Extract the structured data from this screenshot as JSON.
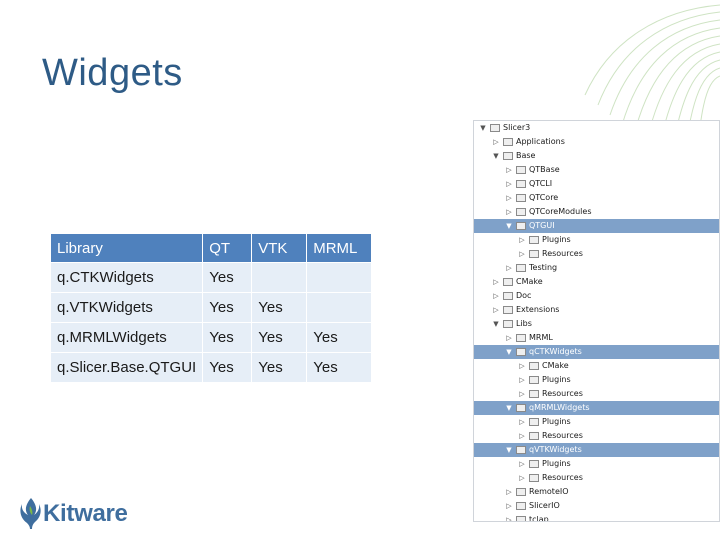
{
  "slide": {
    "title": "Widgets",
    "logo_text": "Kitware"
  },
  "table": {
    "header": [
      "Library",
      "QT",
      "VTK",
      "MRML"
    ],
    "rows": [
      [
        "q.CTKWidgets",
        "Yes",
        "",
        ""
      ],
      [
        "q.VTKWidgets",
        "Yes",
        "Yes",
        ""
      ],
      [
        "q.MRMLWidgets",
        "Yes",
        "Yes",
        "Yes"
      ],
      [
        "q.Slicer.Base.QTGUI",
        "Yes",
        "Yes",
        "Yes"
      ]
    ]
  },
  "tree": {
    "rows": [
      {
        "label": "Slicer3",
        "depth": 0,
        "expanded": true,
        "selected": false
      },
      {
        "label": "Applications",
        "depth": 1,
        "expanded": false,
        "selected": false
      },
      {
        "label": "Base",
        "depth": 1,
        "expanded": true,
        "selected": false
      },
      {
        "label": "QTBase",
        "depth": 2,
        "expanded": false,
        "selected": false
      },
      {
        "label": "QTCLI",
        "depth": 2,
        "expanded": false,
        "selected": false
      },
      {
        "label": "QTCore",
        "depth": 2,
        "expanded": false,
        "selected": false
      },
      {
        "label": "QTCoreModules",
        "depth": 2,
        "expanded": false,
        "selected": false
      },
      {
        "label": "QTGUI",
        "depth": 2,
        "expanded": true,
        "selected": true
      },
      {
        "label": "Plugins",
        "depth": 3,
        "expanded": false,
        "selected": false
      },
      {
        "label": "Resources",
        "depth": 3,
        "expanded": false,
        "selected": false
      },
      {
        "label": "Testing",
        "depth": 2,
        "expanded": false,
        "selected": false
      },
      {
        "label": "CMake",
        "depth": 1,
        "expanded": false,
        "selected": false
      },
      {
        "label": "Doc",
        "depth": 1,
        "expanded": false,
        "selected": false
      },
      {
        "label": "Extensions",
        "depth": 1,
        "expanded": false,
        "selected": false
      },
      {
        "label": "Libs",
        "depth": 1,
        "expanded": true,
        "selected": false
      },
      {
        "label": "MRML",
        "depth": 2,
        "expanded": false,
        "selected": false
      },
      {
        "label": "qCTKWidgets",
        "depth": 2,
        "expanded": true,
        "selected": true
      },
      {
        "label": "CMake",
        "depth": 3,
        "expanded": false,
        "selected": false
      },
      {
        "label": "Plugins",
        "depth": 3,
        "expanded": false,
        "selected": false
      },
      {
        "label": "Resources",
        "depth": 3,
        "expanded": false,
        "selected": false
      },
      {
        "label": "qMRMLWidgets",
        "depth": 2,
        "expanded": true,
        "selected": true
      },
      {
        "label": "Plugins",
        "depth": 3,
        "expanded": false,
        "selected": false
      },
      {
        "label": "Resources",
        "depth": 3,
        "expanded": false,
        "selected": false
      },
      {
        "label": "qVTKWidgets",
        "depth": 2,
        "expanded": true,
        "selected": true
      },
      {
        "label": "Plugins",
        "depth": 3,
        "expanded": false,
        "selected": false
      },
      {
        "label": "Resources",
        "depth": 3,
        "expanded": false,
        "selected": false
      },
      {
        "label": "RemoteIO",
        "depth": 2,
        "expanded": false,
        "selected": false
      },
      {
        "label": "SlicerIO",
        "depth": 2,
        "expanded": false,
        "selected": false
      },
      {
        "label": "tclap",
        "depth": 2,
        "expanded": false,
        "selected": false
      }
    ]
  },
  "colors": {
    "title": "#2e5b86",
    "table_header": "#4f81bd",
    "table_cell": "#e6eef7",
    "tree_selection": "#7fa1c9",
    "logo_text": "#3f6e9e",
    "corner_deco": "#9fc889"
  },
  "icons": {
    "logo_mark": "kitware-logo-icon",
    "tree_expanded": "triangle-down-icon",
    "tree_collapsed": "triangle-right-icon",
    "tree_item": "folder-icon"
  }
}
